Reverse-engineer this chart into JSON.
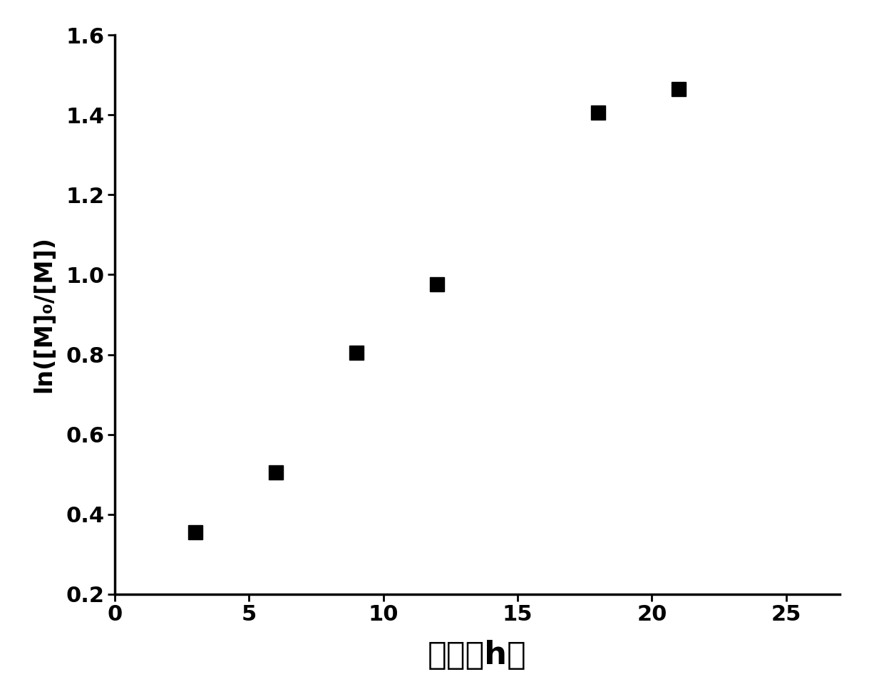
{
  "x": [
    3,
    6,
    9,
    12,
    18,
    21
  ],
  "y": [
    0.355,
    0.505,
    0.805,
    0.975,
    1.405,
    1.465
  ],
  "marker": "s",
  "marker_size": 14,
  "marker_color": "#000000",
  "xlabel": "时间（h）",
  "ylabel": "ln([M]₀/[M])",
  "xlabel_fontsize": 32,
  "ylabel_fontsize": 24,
  "xlim": [
    0,
    27
  ],
  "ylim": [
    0.2,
    1.6
  ],
  "xticks": [
    0,
    5,
    10,
    15,
    20,
    25
  ],
  "yticks": [
    0.2,
    0.4,
    0.6,
    0.8,
    1.0,
    1.2,
    1.4,
    1.6
  ],
  "tick_fontsize": 22,
  "background_color": "#ffffff",
  "spine_linewidth": 2.5
}
